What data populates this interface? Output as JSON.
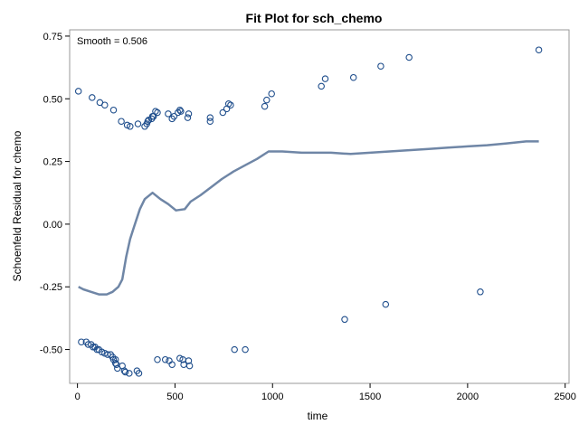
{
  "chart_data": {
    "type": "scatter",
    "title": "Fit Plot for sch_chemo",
    "xlabel": "time",
    "ylabel": "Schoenfeld Residual for chemo",
    "annotation": "Smooth = 0.506",
    "xlim": [
      -40,
      2520
    ],
    "ylim": [
      -0.635,
      0.775
    ],
    "xticks": [
      0,
      500,
      1000,
      1500,
      2000,
      2500
    ],
    "xtick_labels": [
      "0",
      "500",
      "1000",
      "1500",
      "2000",
      "2500"
    ],
    "yticks": [
      -0.5,
      -0.25,
      0.0,
      0.25,
      0.5,
      0.75
    ],
    "ytick_labels": [
      "-0.50",
      "-0.25",
      "0.00",
      "0.25",
      "0.50",
      "0.75"
    ],
    "grid": false,
    "colors": {
      "points": "#1f4e8c",
      "smooth": "#6f86a6",
      "frame": "#999999"
    },
    "points": [
      [
        5,
        0.53
      ],
      [
        75,
        0.505
      ],
      [
        115,
        0.485
      ],
      [
        140,
        0.475
      ],
      [
        185,
        0.455
      ],
      [
        225,
        0.41
      ],
      [
        255,
        0.395
      ],
      [
        270,
        0.39
      ],
      [
        310,
        0.4
      ],
      [
        345,
        0.39
      ],
      [
        355,
        0.4
      ],
      [
        360,
        0.41
      ],
      [
        365,
        0.415
      ],
      [
        380,
        0.42
      ],
      [
        385,
        0.43
      ],
      [
        390,
        0.43
      ],
      [
        400,
        0.45
      ],
      [
        410,
        0.445
      ],
      [
        465,
        0.44
      ],
      [
        485,
        0.42
      ],
      [
        495,
        0.43
      ],
      [
        515,
        0.445
      ],
      [
        525,
        0.455
      ],
      [
        530,
        0.45
      ],
      [
        565,
        0.425
      ],
      [
        570,
        0.44
      ],
      [
        680,
        0.41
      ],
      [
        680,
        0.425
      ],
      [
        745,
        0.445
      ],
      [
        765,
        0.46
      ],
      [
        775,
        0.48
      ],
      [
        785,
        0.475
      ],
      [
        960,
        0.47
      ],
      [
        970,
        0.495
      ],
      [
        995,
        0.52
      ],
      [
        1250,
        0.55
      ],
      [
        1270,
        0.58
      ],
      [
        1415,
        0.585
      ],
      [
        1555,
        0.63
      ],
      [
        1700,
        0.665
      ],
      [
        2365,
        0.695
      ],
      [
        20,
        -0.47
      ],
      [
        45,
        -0.47
      ],
      [
        55,
        -0.48
      ],
      [
        70,
        -0.48
      ],
      [
        80,
        -0.49
      ],
      [
        90,
        -0.49
      ],
      [
        100,
        -0.5
      ],
      [
        110,
        -0.5
      ],
      [
        125,
        -0.51
      ],
      [
        140,
        -0.515
      ],
      [
        155,
        -0.52
      ],
      [
        170,
        -0.52
      ],
      [
        180,
        -0.53
      ],
      [
        185,
        -0.54
      ],
      [
        195,
        -0.54
      ],
      [
        195,
        -0.555
      ],
      [
        200,
        -0.56
      ],
      [
        205,
        -0.575
      ],
      [
        230,
        -0.565
      ],
      [
        240,
        -0.585
      ],
      [
        245,
        -0.59
      ],
      [
        265,
        -0.595
      ],
      [
        305,
        -0.585
      ],
      [
        315,
        -0.595
      ],
      [
        410,
        -0.54
      ],
      [
        450,
        -0.54
      ],
      [
        470,
        -0.545
      ],
      [
        485,
        -0.56
      ],
      [
        525,
        -0.535
      ],
      [
        540,
        -0.54
      ],
      [
        545,
        -0.56
      ],
      [
        570,
        -0.545
      ],
      [
        575,
        -0.565
      ],
      [
        805,
        -0.5
      ],
      [
        860,
        -0.5
      ],
      [
        1370,
        -0.38
      ],
      [
        1580,
        -0.32
      ],
      [
        2065,
        -0.27
      ]
    ],
    "smooth": [
      [
        5,
        -0.25
      ],
      [
        30,
        -0.26
      ],
      [
        70,
        -0.27
      ],
      [
        110,
        -0.28
      ],
      [
        150,
        -0.28
      ],
      [
        180,
        -0.27
      ],
      [
        210,
        -0.25
      ],
      [
        230,
        -0.22
      ],
      [
        250,
        -0.13
      ],
      [
        270,
        -0.06
      ],
      [
        290,
        -0.01
      ],
      [
        320,
        0.06
      ],
      [
        345,
        0.1
      ],
      [
        385,
        0.125
      ],
      [
        425,
        0.1
      ],
      [
        465,
        0.08
      ],
      [
        505,
        0.055
      ],
      [
        550,
        0.06
      ],
      [
        580,
        0.09
      ],
      [
        630,
        0.115
      ],
      [
        690,
        0.15
      ],
      [
        740,
        0.18
      ],
      [
        800,
        0.21
      ],
      [
        860,
        0.235
      ],
      [
        920,
        0.26
      ],
      [
        980,
        0.29
      ],
      [
        1050,
        0.29
      ],
      [
        1150,
        0.285
      ],
      [
        1300,
        0.285
      ],
      [
        1400,
        0.28
      ],
      [
        1500,
        0.285
      ],
      [
        1600,
        0.29
      ],
      [
        1700,
        0.295
      ],
      [
        1800,
        0.3
      ],
      [
        1900,
        0.305
      ],
      [
        2000,
        0.31
      ],
      [
        2100,
        0.315
      ],
      [
        2200,
        0.322
      ],
      [
        2300,
        0.33
      ],
      [
        2365,
        0.33
      ]
    ]
  }
}
